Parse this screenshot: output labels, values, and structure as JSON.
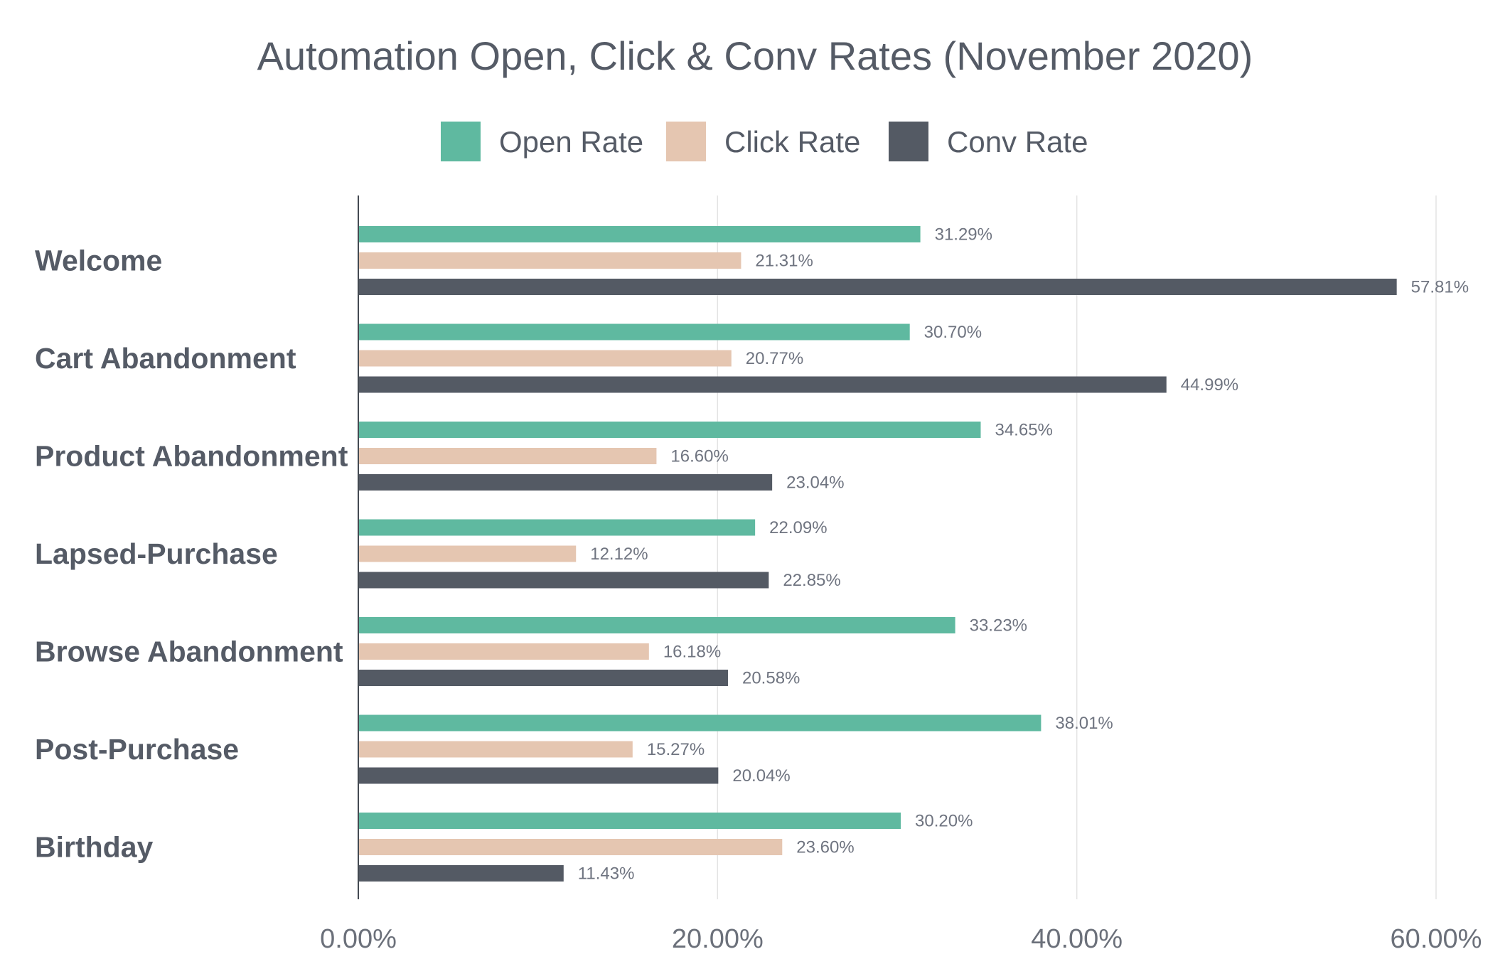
{
  "chart_data": {
    "type": "bar",
    "orientation": "horizontal",
    "title": "Automation Open, Click & Conv Rates (November 2020)",
    "categories": [
      "Welcome",
      "Cart Abandonment",
      "Product Abandonment",
      "Lapsed-Purchase",
      "Browse Abandonment",
      "Post-Purchase",
      "Birthday"
    ],
    "series": [
      {
        "name": "Open Rate",
        "color": "#5fb9a0",
        "values": [
          31.29,
          30.7,
          34.65,
          22.09,
          33.23,
          38.01,
          30.2
        ],
        "labels": [
          "31.29%",
          "30.70%",
          "34.65%",
          "22.09%",
          "33.23%",
          "38.01%",
          "30.20%"
        ]
      },
      {
        "name": "Click Rate",
        "color": "#e5c6b1",
        "values": [
          21.31,
          20.77,
          16.6,
          12.12,
          16.18,
          15.27,
          23.6
        ],
        "labels": [
          "21.31%",
          "20.77%",
          "16.60%",
          "12.12%",
          "16.18%",
          "15.27%",
          "23.60%"
        ]
      },
      {
        "name": "Conv Rate",
        "color": "#545a64",
        "values": [
          57.81,
          44.99,
          23.04,
          22.85,
          20.58,
          20.04,
          11.43
        ],
        "labels": [
          "57.81%",
          "44.99%",
          "23.04%",
          "22.85%",
          "20.58%",
          "20.04%",
          "11.43%"
        ]
      }
    ],
    "xlim": [
      0,
      60
    ],
    "xticks": [
      0,
      20,
      40,
      60
    ],
    "xtick_labels": [
      "0.00%",
      "20.00%",
      "40.00%",
      "60.00%"
    ],
    "xlabel": "",
    "ylabel": "",
    "grid": true,
    "legend_position": "top-center"
  }
}
